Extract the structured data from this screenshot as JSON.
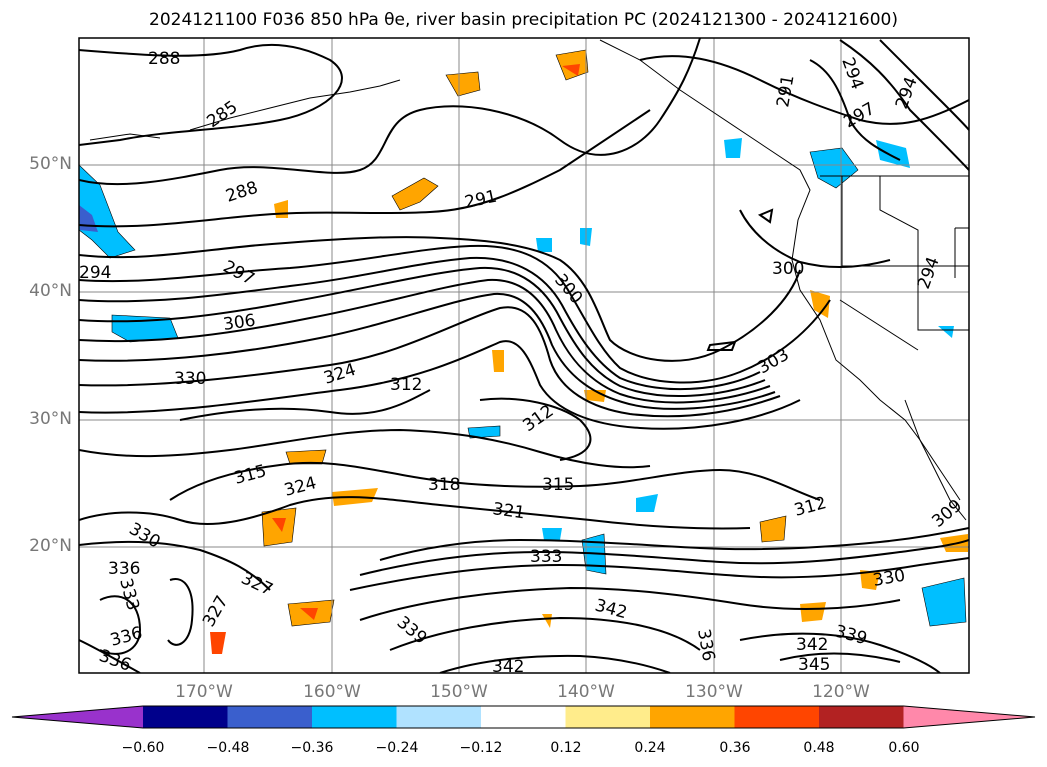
{
  "title": "2024121100 F036 850 hPa θe, river basin precipitation PC (2024121300 - 2024121600)",
  "map": {
    "lat_labels": [
      "50°N",
      "40°N",
      "30°N",
      "20°N"
    ],
    "lon_labels": [
      "170°W",
      "160°W",
      "150°W",
      "140°W",
      "130°W",
      "120°W"
    ],
    "contour_labels": [
      "288",
      "285",
      "288",
      "291",
      "294",
      "297",
      "297",
      "300",
      "300",
      "303",
      "306",
      "309",
      "312",
      "312",
      "312",
      "315",
      "315",
      "318",
      "321",
      "324",
      "324",
      "327",
      "327",
      "330",
      "330",
      "330",
      "333",
      "333",
      "336",
      "336",
      "336",
      "336",
      "339",
      "339",
      "342",
      "342",
      "342",
      "345",
      "294",
      "294",
      "291",
      "294"
    ]
  },
  "colorbar": {
    "ticks": [
      "−0.60",
      "−0.48",
      "−0.36",
      "−0.24",
      "−0.12",
      "0.12",
      "0.24",
      "0.36",
      "0.48",
      "0.60"
    ],
    "colors": [
      "#9932cc",
      "#00008b",
      "#3a5fcd",
      "#00bfff",
      "#b0e2ff",
      "#ffffff",
      "#ffec8b",
      "#ffa500",
      "#ff4500",
      "#b22222",
      "#ff88aa"
    ]
  }
}
